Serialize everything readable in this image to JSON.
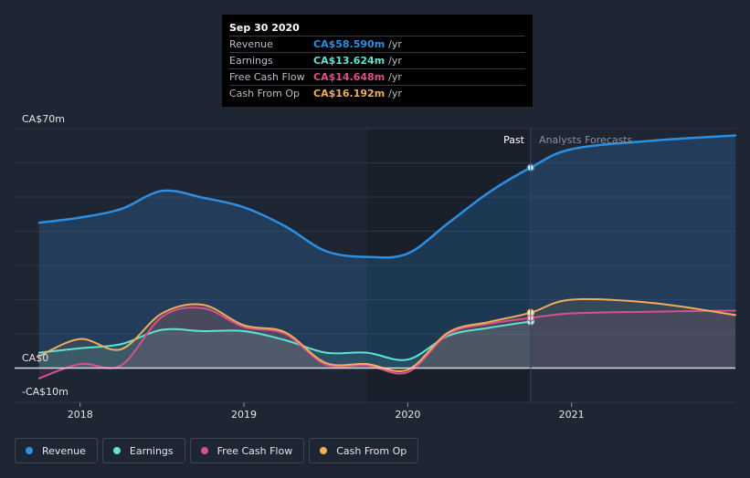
{
  "tooltip": {
    "date": "Sep 30 2020",
    "rows": [
      {
        "label": "Revenue",
        "value": "CA$58.590m",
        "unit": "/yr",
        "color": "#2d8fe3"
      },
      {
        "label": "Earnings",
        "value": "CA$13.624m",
        "unit": "/yr",
        "color": "#5ee3d2"
      },
      {
        "label": "Free Cash Flow",
        "value": "CA$14.648m",
        "unit": "/yr",
        "color": "#d9508a"
      },
      {
        "label": "Cash From Op",
        "value": "CA$16.192m",
        "unit": "/yr",
        "color": "#f0ad5a"
      }
    ]
  },
  "labels": {
    "past": "Past",
    "forecast": "Analysts Forecasts",
    "y_top": "CA$70m",
    "y_zero": "CA$0",
    "y_bottom": "-CA$10m"
  },
  "legend": [
    {
      "label": "Revenue",
      "color": "#2d8fe3"
    },
    {
      "label": "Earnings",
      "color": "#5ee3d2"
    },
    {
      "label": "Free Cash Flow",
      "color": "#d9508a"
    },
    {
      "label": "Cash From Op",
      "color": "#f0ad5a"
    }
  ],
  "chart_data": {
    "type": "line",
    "title": "",
    "xlabel": "",
    "ylabel": "",
    "xlim": [
      2017.6,
      2022.0
    ],
    "ylim": [
      -10,
      70
    ],
    "x_ticks": [
      2018,
      2019,
      2020,
      2021
    ],
    "x_tick_labels": [
      "2018",
      "2019",
      "2020",
      "2021"
    ],
    "y_ticks": [
      -10,
      0,
      10,
      20,
      30,
      40,
      50,
      60,
      70
    ],
    "past_end_x": 2020.75,
    "shaded_region": [
      2019.75,
      2020.75
    ],
    "series": [
      {
        "name": "Revenue",
        "color": "#2d8fe3",
        "points": [
          [
            2017.75,
            42.5
          ],
          [
            2018.0,
            44.0
          ],
          [
            2018.25,
            46.5
          ],
          [
            2018.5,
            51.8
          ],
          [
            2018.75,
            49.8
          ],
          [
            2019.0,
            47.0
          ],
          [
            2019.25,
            41.5
          ],
          [
            2019.5,
            34.2
          ],
          [
            2019.75,
            32.5
          ],
          [
            2020.0,
            33.5
          ],
          [
            2020.25,
            42.5
          ],
          [
            2020.5,
            51.5
          ],
          [
            2020.75,
            58.59
          ],
          [
            2021.0,
            64.0
          ],
          [
            2021.5,
            66.5
          ],
          [
            2022.0,
            68.0
          ]
        ]
      },
      {
        "name": "Earnings",
        "color": "#5ee3d2",
        "points": [
          [
            2017.75,
            4.5
          ],
          [
            2018.0,
            5.8
          ],
          [
            2018.25,
            7.0
          ],
          [
            2018.5,
            11.2
          ],
          [
            2018.75,
            10.8
          ],
          [
            2019.0,
            10.8
          ],
          [
            2019.25,
            8.2
          ],
          [
            2019.5,
            4.5
          ],
          [
            2019.75,
            4.5
          ],
          [
            2020.0,
            2.5
          ],
          [
            2020.25,
            9.5
          ],
          [
            2020.5,
            11.8
          ],
          [
            2020.75,
            13.62
          ]
        ]
      },
      {
        "name": "Free Cash Flow",
        "color": "#d9508a",
        "points": [
          [
            2017.75,
            -3.0
          ],
          [
            2018.0,
            1.2
          ],
          [
            2018.25,
            0.8
          ],
          [
            2018.5,
            15.0
          ],
          [
            2018.75,
            17.5
          ],
          [
            2019.0,
            12.0
          ],
          [
            2019.25,
            10.0
          ],
          [
            2019.5,
            1.0
          ],
          [
            2019.75,
            0.8
          ],
          [
            2020.0,
            -1.2
          ],
          [
            2020.25,
            10.0
          ],
          [
            2020.5,
            13.0
          ],
          [
            2020.75,
            14.65
          ],
          [
            2021.0,
            16.0
          ],
          [
            2021.5,
            16.5
          ],
          [
            2022.0,
            16.8
          ]
        ]
      },
      {
        "name": "Cash From Op",
        "color": "#f0ad5a",
        "points": [
          [
            2017.75,
            3.5
          ],
          [
            2018.0,
            8.5
          ],
          [
            2018.25,
            5.5
          ],
          [
            2018.5,
            16.0
          ],
          [
            2018.75,
            18.5
          ],
          [
            2019.0,
            12.5
          ],
          [
            2019.25,
            10.5
          ],
          [
            2019.5,
            1.5
          ],
          [
            2019.75,
            1.2
          ],
          [
            2020.0,
            -0.5
          ],
          [
            2020.25,
            10.5
          ],
          [
            2020.5,
            13.5
          ],
          [
            2020.75,
            16.19
          ],
          [
            2021.0,
            20.0
          ],
          [
            2021.5,
            19.0
          ],
          [
            2022.0,
            15.5
          ]
        ]
      }
    ]
  }
}
